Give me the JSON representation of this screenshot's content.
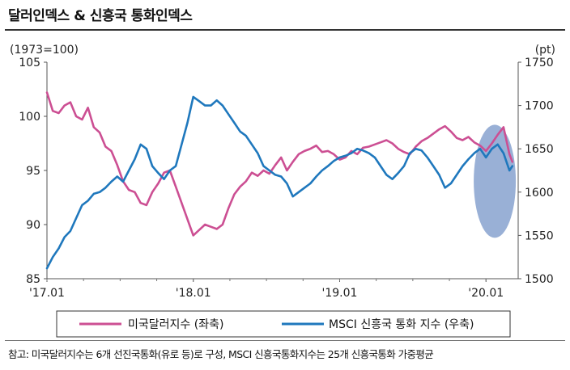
{
  "title": "달러인덱스 & 신흥국 통화인덱스",
  "footnote": "참고: 미국달러지수는 6개 선진국통화(유로 등)로 구성, MSCI 신흥국통화지수는 25개 신흥국통화 가중평균",
  "colors": {
    "usd": "#cc4f93",
    "msci": "#1f78bd",
    "highlight": "#7f9ccc"
  },
  "chart_data": {
    "type": "line",
    "left_unit": "(1973=100)",
    "right_unit": "(pt)",
    "x_ticks": [
      "'17.01",
      "'18.01",
      "'19.01",
      "'20.01"
    ],
    "x_range": [
      2017.0,
      2020.22
    ],
    "y_left": {
      "range": [
        85,
        105
      ],
      "ticks": [
        "85",
        "90",
        "95",
        "100",
        "105"
      ]
    },
    "y_right": {
      "range": [
        1500,
        1750
      ],
      "ticks": [
        "1500",
        "1550",
        "1600",
        "1650",
        "1700",
        "1750"
      ]
    },
    "series": [
      {
        "name": "미국달러지수 (좌축)",
        "axis": "left",
        "x": [
          2017.0,
          2017.04,
          2017.08,
          2017.12,
          2017.16,
          2017.2,
          2017.24,
          2017.28,
          2017.32,
          2017.36,
          2017.4,
          2017.44,
          2017.48,
          2017.52,
          2017.56,
          2017.6,
          2017.64,
          2017.68,
          2017.72,
          2017.76,
          2017.8,
          2017.84,
          2017.88,
          2017.92,
          2017.96,
          2018.0,
          2018.04,
          2018.08,
          2018.12,
          2018.16,
          2018.2,
          2018.24,
          2018.28,
          2018.32,
          2018.36,
          2018.4,
          2018.44,
          2018.48,
          2018.52,
          2018.56,
          2018.6,
          2018.64,
          2018.68,
          2018.72,
          2018.76,
          2018.8,
          2018.84,
          2018.88,
          2018.92,
          2018.96,
          2019.0,
          2019.04,
          2019.08,
          2019.12,
          2019.16,
          2019.2,
          2019.24,
          2019.28,
          2019.32,
          2019.36,
          2019.4,
          2019.44,
          2019.48,
          2019.52,
          2019.56,
          2019.6,
          2019.64,
          2019.68,
          2019.72,
          2019.76,
          2019.8,
          2019.84,
          2019.88,
          2019.92,
          2019.96,
          2020.0,
          2020.04,
          2020.08,
          2020.12,
          2020.16,
          2020.18
        ],
        "values": [
          102.2,
          100.5,
          100.3,
          101.0,
          101.3,
          100.0,
          99.7,
          100.8,
          99.0,
          98.5,
          97.2,
          96.8,
          95.5,
          94.0,
          93.2,
          93.0,
          92.0,
          91.8,
          93.0,
          93.8,
          94.8,
          95.0,
          93.5,
          92.0,
          90.5,
          89.0,
          89.5,
          90.0,
          89.8,
          89.6,
          90.0,
          91.5,
          92.8,
          93.5,
          94.0,
          94.8,
          94.5,
          95.0,
          94.7,
          95.5,
          96.2,
          95.0,
          95.8,
          96.5,
          96.8,
          97.0,
          97.3,
          96.7,
          96.8,
          96.5,
          96.0,
          96.2,
          96.8,
          96.5,
          97.1,
          97.2,
          97.4,
          97.6,
          97.8,
          97.5,
          97.0,
          96.7,
          96.5,
          97.2,
          97.7,
          98.0,
          98.4,
          98.8,
          99.1,
          98.6,
          98.0,
          97.8,
          98.1,
          97.6,
          97.3,
          96.8,
          97.5,
          98.3,
          99.0,
          96.5,
          95.8
        ]
      },
      {
        "name": "MSCI 신흥국 통화 지수 (우축)",
        "axis": "right",
        "x": [
          2017.0,
          2017.04,
          2017.08,
          2017.12,
          2017.16,
          2017.2,
          2017.24,
          2017.28,
          2017.32,
          2017.36,
          2017.4,
          2017.44,
          2017.48,
          2017.52,
          2017.56,
          2017.6,
          2017.64,
          2017.68,
          2017.72,
          2017.76,
          2017.8,
          2017.84,
          2017.88,
          2017.92,
          2017.96,
          2018.0,
          2018.04,
          2018.08,
          2018.12,
          2018.16,
          2018.2,
          2018.24,
          2018.28,
          2018.32,
          2018.36,
          2018.4,
          2018.44,
          2018.48,
          2018.52,
          2018.56,
          2018.6,
          2018.64,
          2018.68,
          2018.72,
          2018.76,
          2018.8,
          2018.84,
          2018.88,
          2018.92,
          2018.96,
          2019.0,
          2019.04,
          2019.08,
          2019.12,
          2019.16,
          2019.2,
          2019.24,
          2019.28,
          2019.32,
          2019.36,
          2019.4,
          2019.44,
          2019.48,
          2019.52,
          2019.56,
          2019.6,
          2019.64,
          2019.68,
          2019.72,
          2019.76,
          2019.8,
          2019.84,
          2019.88,
          2019.92,
          2019.96,
          2020.0,
          2020.04,
          2020.08,
          2020.12,
          2020.16,
          2020.18
        ],
        "values": [
          1512,
          1525,
          1535,
          1548,
          1555,
          1570,
          1585,
          1590,
          1598,
          1600,
          1605,
          1612,
          1618,
          1612,
          1625,
          1638,
          1655,
          1650,
          1630,
          1622,
          1615,
          1625,
          1630,
          1655,
          1680,
          1710,
          1705,
          1700,
          1700,
          1706,
          1700,
          1690,
          1680,
          1670,
          1665,
          1655,
          1645,
          1630,
          1625,
          1620,
          1618,
          1610,
          1595,
          1600,
          1605,
          1610,
          1618,
          1625,
          1630,
          1636,
          1640,
          1642,
          1645,
          1650,
          1648,
          1645,
          1640,
          1630,
          1620,
          1615,
          1622,
          1630,
          1645,
          1650,
          1648,
          1640,
          1630,
          1620,
          1605,
          1610,
          1620,
          1630,
          1638,
          1645,
          1650,
          1640,
          1650,
          1655,
          1645,
          1625,
          1630
        ]
      }
    ],
    "highlight": "ellipse around early 2020"
  }
}
